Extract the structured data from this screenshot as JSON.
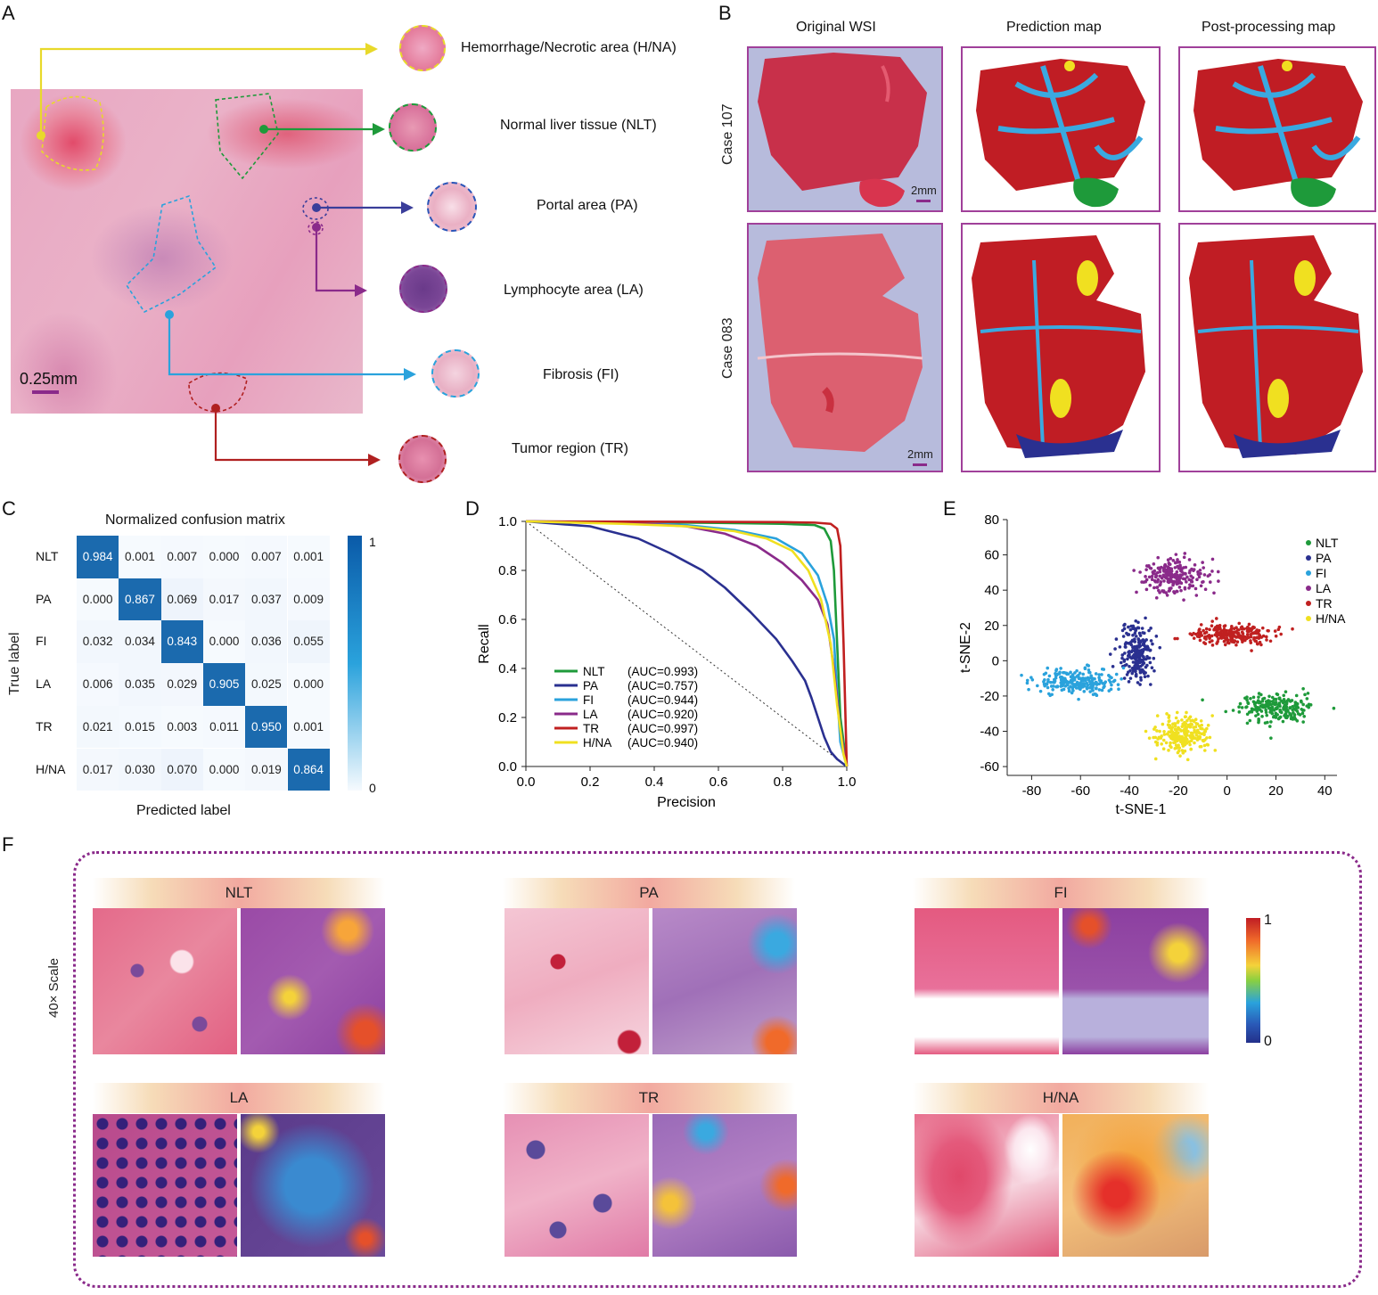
{
  "panels": {
    "A": "A",
    "B": "B",
    "C": "C",
    "D": "D",
    "E": "E",
    "F": "F"
  },
  "panelA": {
    "scale": "0.25mm",
    "items": [
      {
        "label": "Hemorrhage/Necrotic area (H/NA)",
        "color": "#e8d92a"
      },
      {
        "label": "Normal liver tissue (NLT)",
        "color": "#1e9a3a"
      },
      {
        "label": "Portal area (PA)",
        "color": "#3a3e9a"
      },
      {
        "label": "Lymphocyte area (LA)",
        "color": "#8a2a8a"
      },
      {
        "label": "Fibrosis (FI)",
        "color": "#2aa2dc"
      },
      {
        "label": "Tumor region (TR)",
        "color": "#b02020"
      }
    ]
  },
  "panelB": {
    "columns": [
      "Original WSI",
      "Prediction map",
      "Post-processing map"
    ],
    "rows": [
      "Case 107",
      "Case 083"
    ],
    "scale": "2mm"
  },
  "panelC": {
    "title": "Normalized confusion matrix",
    "ylabel": "True label",
    "xlabel": "Predicted label",
    "labels": [
      "NLT",
      "PA",
      "FI",
      "LA",
      "TR",
      "H/NA"
    ],
    "matrix": [
      [
        "0.984",
        "0.001",
        "0.007",
        "0.000",
        "0.007",
        "0.001"
      ],
      [
        "0.000",
        "0.867",
        "0.069",
        "0.017",
        "0.037",
        "0.009"
      ],
      [
        "0.032",
        "0.034",
        "0.843",
        "0.000",
        "0.036",
        "0.055"
      ],
      [
        "0.006",
        "0.035",
        "0.029",
        "0.905",
        "0.025",
        "0.000"
      ],
      [
        "0.021",
        "0.015",
        "0.003",
        "0.011",
        "0.950",
        "0.001"
      ],
      [
        "0.017",
        "0.030",
        "0.070",
        "0.000",
        "0.019",
        "0.864"
      ]
    ],
    "colorbar": {
      "max": "1",
      "min": "0"
    }
  },
  "chart_data": [
    {
      "type": "line",
      "panel": "D",
      "xlabel": "Precision",
      "ylabel": "Recall",
      "xlim": [
        0,
        1.0
      ],
      "ylim": [
        0,
        1.0
      ],
      "xticks": [
        "0.0",
        "0.2",
        "0.4",
        "0.6",
        "0.8",
        "1.0"
      ],
      "yticks": [
        "0.0",
        "0.2",
        "0.4",
        "0.6",
        "0.8",
        "1.0"
      ],
      "series": [
        {
          "name": "NLT",
          "auc": "(AUC=0.993)",
          "color": "#1e9a3a",
          "x": [
            0,
            0.2,
            0.4,
            0.6,
            0.8,
            0.9,
            0.93,
            0.95,
            0.96,
            0.97,
            0.98,
            1.0
          ],
          "y": [
            1,
            0.998,
            0.996,
            0.994,
            0.99,
            0.985,
            0.97,
            0.92,
            0.8,
            0.5,
            0.2,
            0
          ]
        },
        {
          "name": "PA",
          "auc": "(AUC=0.757)",
          "color": "#2a3090",
          "x": [
            0,
            0.2,
            0.35,
            0.45,
            0.55,
            0.62,
            0.7,
            0.78,
            0.83,
            0.87,
            0.89,
            0.91,
            0.93,
            0.95,
            0.97,
            1.0
          ],
          "y": [
            1,
            0.98,
            0.93,
            0.87,
            0.8,
            0.73,
            0.63,
            0.52,
            0.43,
            0.35,
            0.28,
            0.2,
            0.12,
            0.06,
            0.03,
            0
          ]
        },
        {
          "name": "FI",
          "auc": "(AUC=0.944)",
          "color": "#2aa2dc",
          "x": [
            0,
            0.3,
            0.5,
            0.65,
            0.78,
            0.86,
            0.91,
            0.94,
            0.96,
            0.97,
            0.98,
            1.0
          ],
          "y": [
            1,
            0.995,
            0.985,
            0.965,
            0.93,
            0.87,
            0.78,
            0.66,
            0.52,
            0.3,
            0.1,
            0
          ]
        },
        {
          "name": "LA",
          "auc": "(AUC=0.920)",
          "color": "#8a2a8a",
          "x": [
            0,
            0.3,
            0.5,
            0.62,
            0.72,
            0.8,
            0.86,
            0.91,
            0.94,
            0.96,
            0.98,
            1.0
          ],
          "y": [
            1,
            0.995,
            0.98,
            0.95,
            0.9,
            0.83,
            0.76,
            0.68,
            0.58,
            0.4,
            0.15,
            0
          ]
        },
        {
          "name": "TR",
          "auc": "(AUC=0.997)",
          "color": "#c02020",
          "x": [
            0,
            0.3,
            0.6,
            0.8,
            0.9,
            0.95,
            0.97,
            0.98,
            0.99,
            1.0
          ],
          "y": [
            1,
            0.999,
            0.998,
            0.997,
            0.995,
            0.99,
            0.97,
            0.9,
            0.5,
            0
          ]
        },
        {
          "name": "H/NA",
          "auc": "(AUC=0.940)",
          "color": "#f0e020",
          "x": [
            0,
            0.3,
            0.5,
            0.65,
            0.75,
            0.83,
            0.88,
            0.92,
            0.95,
            0.97,
            0.99,
            1.0
          ],
          "y": [
            1,
            0.99,
            0.98,
            0.96,
            0.93,
            0.88,
            0.8,
            0.68,
            0.5,
            0.25,
            0.05,
            0
          ]
        }
      ],
      "baseline": {
        "x": [
          0,
          1
        ],
        "y": [
          1,
          0
        ]
      }
    },
    {
      "type": "scatter",
      "panel": "E",
      "xlabel": "t-SNE-1",
      "ylabel": "t-SNE-2",
      "xlim": [
        -90,
        45
      ],
      "ylim": [
        -65,
        80
      ],
      "xticks": [
        "-80",
        "-60",
        "-40",
        "-20",
        "0",
        "20",
        "40"
      ],
      "yticks": [
        "80",
        "60",
        "40",
        "20",
        "0",
        "-20",
        "-40",
        "-60"
      ],
      "series": [
        {
          "name": "NLT",
          "color": "#1e9a3a",
          "center": [
            20,
            -27
          ],
          "spread": [
            13,
            7
          ]
        },
        {
          "name": "PA",
          "color": "#2a3090",
          "center": [
            -37,
            5
          ],
          "spread": [
            6,
            14
          ]
        },
        {
          "name": "FI",
          "color": "#2aa2dc",
          "center": [
            -62,
            -12
          ],
          "spread": [
            14,
            7
          ]
        },
        {
          "name": "LA",
          "color": "#8a2a8a",
          "center": [
            -22,
            48
          ],
          "spread": [
            12,
            9
          ]
        },
        {
          "name": "TR",
          "color": "#c02020",
          "center": [
            3,
            15
          ],
          "spread": [
            14,
            5
          ]
        },
        {
          "name": "H/NA",
          "color": "#f0e020",
          "center": [
            -18,
            -42
          ],
          "spread": [
            10,
            10
          ]
        }
      ]
    }
  ],
  "panelF": {
    "side_label": "40× Scale",
    "classes": [
      "NLT",
      "PA",
      "FI",
      "LA",
      "TR",
      "H/NA"
    ],
    "colorbar": {
      "max": "1",
      "min": "0"
    }
  }
}
